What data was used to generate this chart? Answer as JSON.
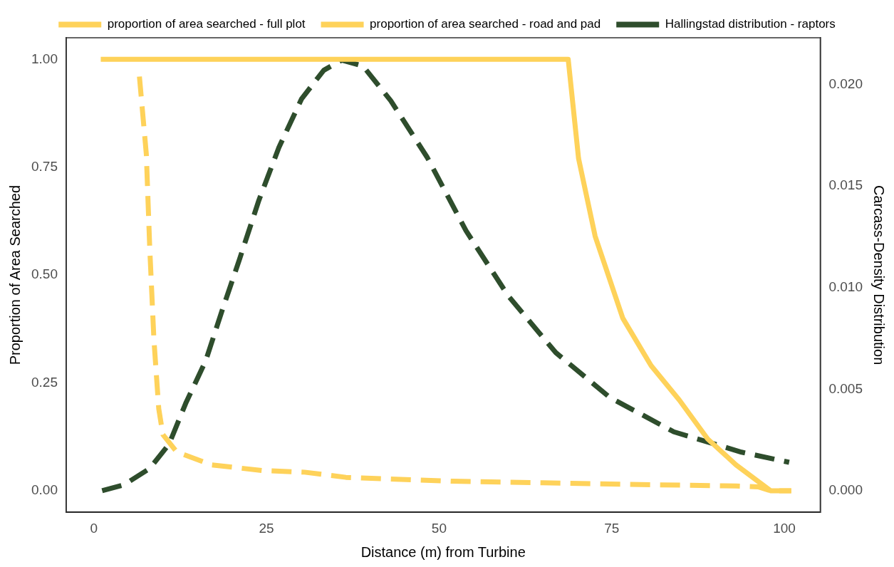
{
  "chart_data": {
    "type": "line",
    "xlabel": "Distance (m) from Turbine",
    "ylabel": "Proportion of Area Searched",
    "y2label": "Carcass-Density Distribution",
    "xlim": [
      -4,
      105.2
    ],
    "xticks": [
      0,
      25,
      50,
      75,
      100
    ],
    "ylim": [
      -0.05,
      1.05
    ],
    "yticks": [
      {
        "value": 0,
        "label": "0.00"
      },
      {
        "value": 0.25,
        "label": "0.25"
      },
      {
        "value": 0.5,
        "label": "0.50"
      },
      {
        "value": 0.75,
        "label": "0.75"
      },
      {
        "value": 1,
        "label": "1.00"
      }
    ],
    "y2lim": [
      -0.00106,
      0.0223
    ],
    "y2ticks": [
      {
        "value": 0,
        "label": "0.000"
      },
      {
        "value": 0.005,
        "label": "0.005"
      },
      {
        "value": 0.01,
        "label": "0.010"
      },
      {
        "value": 0.015,
        "label": "0.015"
      },
      {
        "value": 0.02,
        "label": "0.020"
      }
    ],
    "grid": false,
    "legend": "top",
    "marker": "none",
    "series": [
      {
        "name": "proportion of area searched - full plot",
        "color": "#fed25a",
        "line_style": "solid",
        "x": [
          1,
          68.7,
          70.2,
          72.6,
          76.6,
          80.7,
          84.8,
          88.9,
          93,
          98,
          101
        ],
        "values": [
          1,
          1,
          0.77,
          0.59,
          0.4,
          0.29,
          0.21,
          0.12,
          0.06,
          0,
          0
        ]
      },
      {
        "name": "proportion of area searched - road and pad",
        "color": "#fed25a",
        "line_style": "dashed",
        "x": [
          6.6,
          7.6,
          8.1,
          8.7,
          9.4,
          10,
          12,
          17,
          24.3,
          30.5,
          36.5,
          52,
          76.6,
          93,
          96.2,
          98,
          101
        ],
        "values": [
          0.96,
          0.78,
          0.56,
          0.35,
          0.19,
          0.13,
          0.09,
          0.06,
          0.047,
          0.043,
          0.031,
          0.022,
          0.015,
          0.011,
          0.009,
          0,
          0
        ]
      },
      {
        "name": "Hallingstad distribution - raptors",
        "color": "#2e4d2c",
        "line_style": "dashed",
        "axis": "y2",
        "x": [
          1.2,
          4.4,
          8.1,
          10.9,
          13.3,
          16.2,
          18.6,
          21.1,
          23.9,
          26.8,
          30.1,
          33.3,
          35.9,
          39,
          43,
          48.3,
          53.9,
          60,
          66.9,
          74.7,
          84,
          93.8,
          100.7
        ],
        "values": [
          0,
          0.0003,
          0.0011,
          0.0023,
          0.0043,
          0.0064,
          0.0089,
          0.0114,
          0.0143,
          0.0169,
          0.0193,
          0.0207,
          0.0212,
          0.0209,
          0.0192,
          0.0164,
          0.0128,
          0.0096,
          0.0068,
          0.0046,
          0.0029,
          0.0019,
          0.0014
        ]
      }
    ]
  }
}
